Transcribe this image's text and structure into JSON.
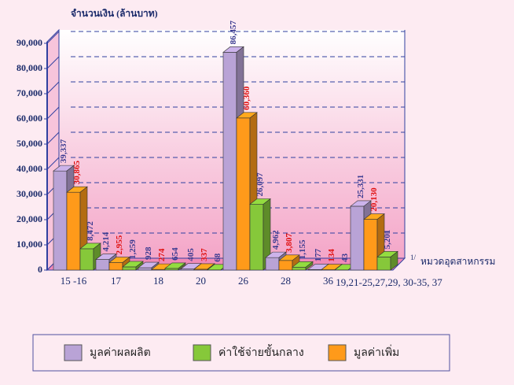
{
  "chart_data": {
    "type": "bar3d",
    "ylabel": "จำนวนเงิน (ล้านบาท)",
    "xlabel": "หมวดอุตสาหกรรม",
    "xlabel_marker": "1/",
    "categories": [
      "15 -16",
      "17",
      "18",
      "20",
      "26",
      "28",
      "36",
      "19,21-25,27,29, 30-35, 37"
    ],
    "series": [
      {
        "name": "มูลค่าผลผลิต",
        "color": "#b9a3d6",
        "values": [
          39337,
          4214,
          928,
          405,
          86457,
          4962,
          177,
          25331
        ],
        "value_labels": [
          "39,337",
          "4,214",
          "928",
          "405",
          "86,457",
          "4,962",
          "177",
          "25,331"
        ]
      },
      {
        "name": "มูลค่าเพิ่ม",
        "color": "#ff9a1a",
        "values": [
          30865,
          2955,
          274,
          337,
          60360,
          3807,
          134,
          20130
        ],
        "value_labels": [
          "30,865",
          "2,955",
          "274",
          "337",
          "60,360",
          "3,807",
          "134",
          "20,130"
        ]
      },
      {
        "name": "ค่าใช้จ่ายขั้นกลาง",
        "color": "#86c83a",
        "values": [
          8472,
          1259,
          654,
          68,
          26097,
          1155,
          43,
          5201
        ],
        "value_labels": [
          "8,472",
          "1,259",
          "654",
          "68",
          "26,097",
          "1,155",
          "43",
          "5,201"
        ]
      }
    ],
    "legend_order": [
      0,
      2,
      1
    ],
    "ylim": [
      0,
      90000
    ],
    "yticks": [
      0,
      {
        "value": 10000,
        "label": "10,000"
      },
      {
        "value": 20000,
        "label": "20,000"
      },
      {
        "value": 30000,
        "label": "30,000"
      },
      {
        "value": 40000,
        "label": "40,000"
      },
      {
        "value": 50000,
        "label": "50,000"
      },
      {
        "value": 60000,
        "label": "60,000"
      },
      {
        "value": 70000,
        "label": "70,000"
      },
      {
        "value": 80000,
        "label": "80,000"
      },
      {
        "value": 90000,
        "label": "90,000"
      }
    ],
    "grid": true
  }
}
